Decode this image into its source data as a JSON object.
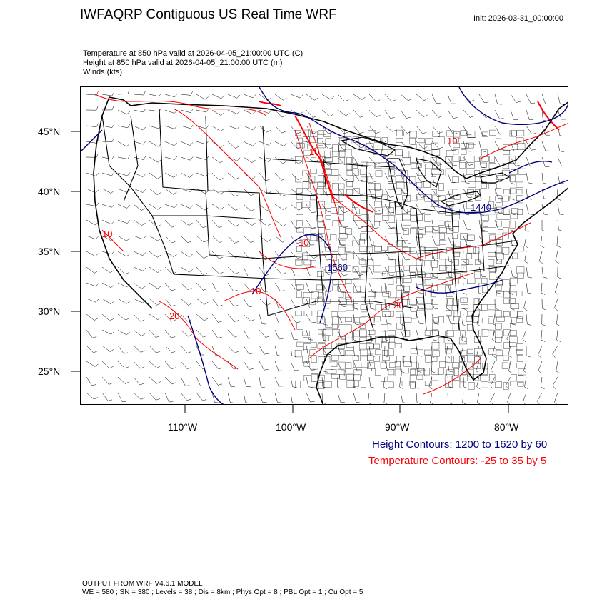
{
  "header": {
    "title": "IWFAQRP Contiguous US Real Time WRF",
    "init": "Init: 2026-03-31_00:00:00"
  },
  "subtitles": [
    "Temperature at 850 hPa valid at 2026-04-05_21:00:00 UTC   (C)",
    "Height at 850 hPa valid at 2026-04-05_21:00:00 UTC   (m)",
    "Winds   (kts)"
  ],
  "map": {
    "lat_ticks": [
      "45°N",
      "40°N",
      "35°N",
      "30°N",
      "25°N"
    ],
    "lon_ticks": [
      "110°W",
      "100°W",
      "90°W",
      "80°W"
    ],
    "colors": {
      "height": "#000080",
      "temperature": "#ff0000",
      "coast": "#000000"
    },
    "temperature_labels": [
      "10",
      "10",
      "10",
      "20",
      "20",
      "10",
      "10"
    ],
    "height_labels": [
      "1560",
      "1440"
    ]
  },
  "legend": {
    "height": "Height Contours: 1200 to 1620 by 60",
    "temperature": "Temperature Contours: -25 to 35 by 5"
  },
  "footer": {
    "line1": "OUTPUT FROM WRF V4.6.1 MODEL",
    "line2": "WE = 580 ; SN = 380 ; Levels = 38 ; Dis = 8km ; Phys Opt = 8 ; PBL Opt = 1 ; Cu Opt = 5"
  }
}
